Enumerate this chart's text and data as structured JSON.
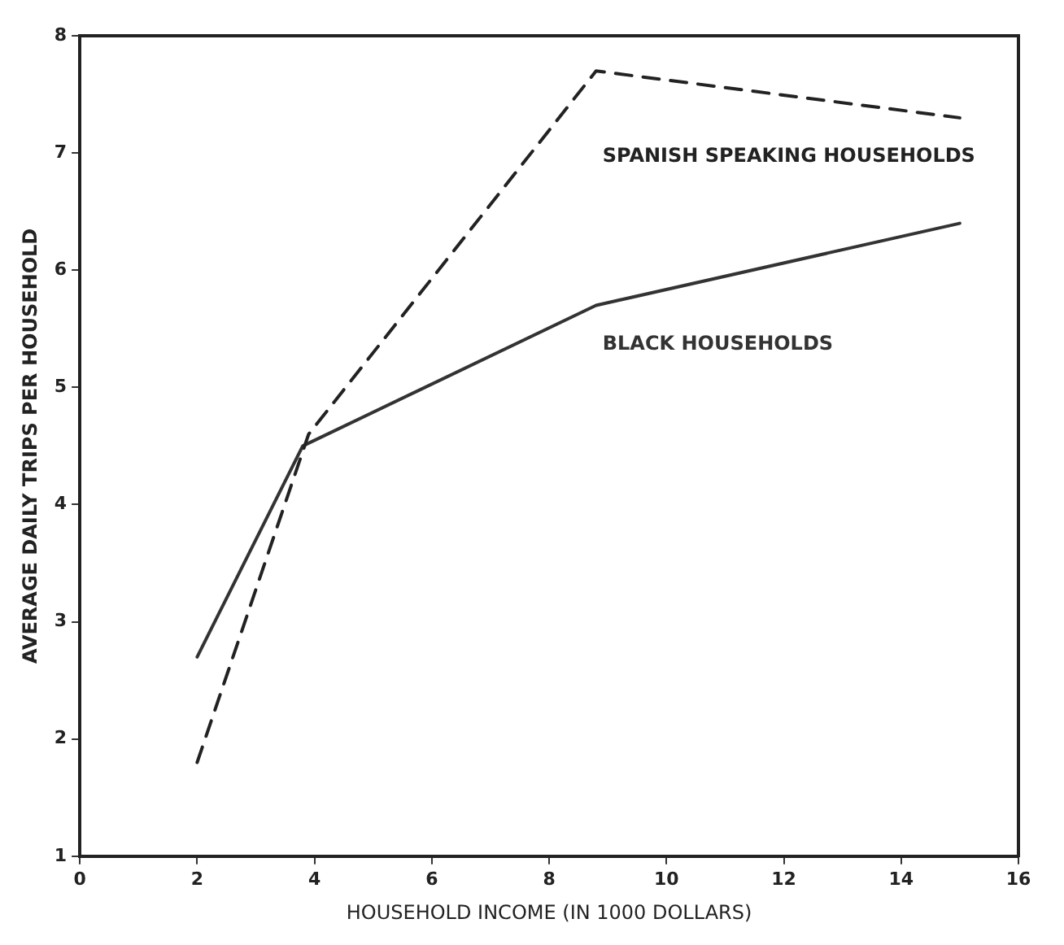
{
  "chart_data": {
    "type": "line",
    "xlabel": "HOUSEHOLD INCOME (IN 1000 DOLLARS)",
    "ylabel": "AVERAGE DAILY TRIPS PER HOUSEHOLD",
    "xlim": [
      0,
      16
    ],
    "xticks": [
      0,
      2,
      4,
      6,
      8,
      10,
      12,
      14,
      16
    ],
    "ylim": [
      1,
      8
    ],
    "yticks": [
      1,
      2,
      3,
      4,
      5,
      6,
      7,
      8
    ],
    "grid": false,
    "legend": false,
    "marker": "none",
    "series": [
      {
        "name": "SPANISH SPEAKING HOUSEHOLDS",
        "color": "#222222",
        "line_style": "dashed",
        "x": [
          2,
          3.9,
          8.8,
          15
        ],
        "values": [
          1.8,
          4.6,
          7.7,
          7.3
        ]
      },
      {
        "name": "BLACK HOUSEHOLDS",
        "color": "#333333",
        "line_style": "solid",
        "x": [
          2,
          3.8,
          8.8,
          15
        ],
        "values": [
          2.7,
          4.5,
          5.7,
          6.4
        ]
      }
    ]
  }
}
